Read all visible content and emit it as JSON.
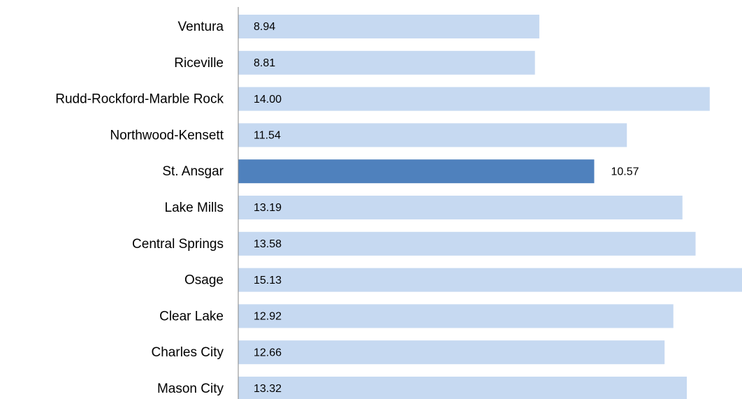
{
  "chart_data": {
    "type": "bar",
    "orientation": "horizontal",
    "categories": [
      "Ventura",
      "Riceville",
      "Rudd-Rockford-Marble Rock",
      "Northwood-Kensett",
      "St. Ansgar",
      "Lake Mills",
      "Central Springs",
      "Osage",
      "Clear Lake",
      "Charles City",
      "Mason City"
    ],
    "values": [
      8.94,
      8.81,
      14.0,
      11.54,
      10.57,
      13.19,
      13.58,
      15.13,
      12.92,
      12.66,
      13.32
    ],
    "value_labels": [
      "8.94",
      "8.81",
      "14.00",
      "11.54",
      "10.57",
      "13.19",
      "13.58",
      "15.13",
      "12.92",
      "12.66",
      "13.32"
    ],
    "colors": [
      "#c6d9f1",
      "#c6d9f1",
      "#c6d9f1",
      "#c6d9f1",
      "#4f81bd",
      "#c6d9f1",
      "#c6d9f1",
      "#c6d9f1",
      "#c6d9f1",
      "#c6d9f1",
      "#c6d9f1"
    ],
    "xlim": [
      0,
      15
    ]
  }
}
